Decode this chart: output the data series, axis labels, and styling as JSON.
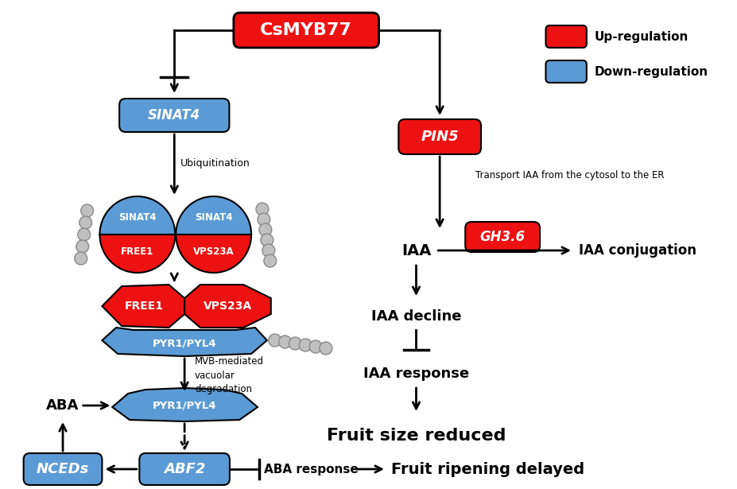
{
  "title": "CsMYB77",
  "red_color": "#EE1111",
  "blue_color": "#5B9BD5",
  "black": "#000000",
  "white": "#FFFFFF",
  "bg_color": "#FFFFFF",
  "legend_upregulation": "Up-regulation",
  "legend_downregulation": "Down-regulation",
  "label_SINAT4": "SINAT4",
  "label_PIN5": "PIN5",
  "label_FREE1": "FREE1",
  "label_VPS23A": "VPS23A",
  "label_PYR1PYL4": "PYR1/PYL4",
  "label_ABF2": "ABF2",
  "label_NCEDs": "NCEDs",
  "label_GH36": "GH3.6",
  "text_ubiquitination": "Ubiquitination",
  "text_MVB": "MVB-mediated\nvacuolar\ndegradation",
  "text_transport": "Transport IAA from the cytosol to the ER",
  "text_IAA": "IAA",
  "text_IAA_conj": "IAA conjugation",
  "text_IAA_decline": "IAA decline",
  "text_IAA_response": "IAA response",
  "text_ABA": "ABA",
  "text_ABA_response": "ABA response",
  "text_fruit_size": "Fruit size reduced",
  "text_fruit_ripening": "Fruit ripening delayed",
  "figsize": [
    9.27,
    6.15
  ],
  "dpi": 100
}
